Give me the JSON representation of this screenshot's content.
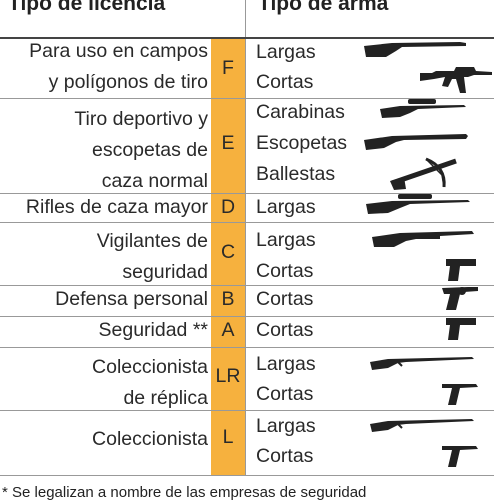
{
  "header": {
    "license_type": "Tipo de licencia",
    "weapon_type": "Tipo de arma"
  },
  "rows": [
    {
      "license": [
        "Para uso en campos",
        "y polígonos de tiro"
      ],
      "code": "F",
      "weapons": [
        {
          "label": "Largas",
          "icon": "rifle-icon"
        },
        {
          "label": "Cortas",
          "icon": "assault-rifle-icon"
        }
      ]
    },
    {
      "license": [
        "Tiro deportivo y",
        "escopetas de",
        "caza normal"
      ],
      "code": "E",
      "weapons": [
        {
          "label": "Carabinas",
          "icon": "scoped-carbine-icon"
        },
        {
          "label": "Escopetas",
          "icon": "shotgun-icon"
        },
        {
          "label": "Ballestas",
          "icon": "crossbow-icon"
        }
      ]
    },
    {
      "license": [
        "Rifles de caza mayor"
      ],
      "code": "D",
      "weapons": [
        {
          "label": "Largas",
          "icon": "scoped-rifle-icon"
        }
      ]
    },
    {
      "license": [
        "Vigilantes de",
        "seguridad"
      ],
      "code": "C",
      "weapons": [
        {
          "label": "Largas",
          "icon": "pump-shotgun-icon"
        },
        {
          "label": "Cortas",
          "icon": "pistol-icon"
        }
      ]
    },
    {
      "license": [
        "Defensa personal"
      ],
      "code": "B",
      "weapons": [
        {
          "label": "Cortas",
          "icon": "revolver-icon"
        }
      ]
    },
    {
      "license": [
        "Seguridad **"
      ],
      "code": "A",
      "weapons": [
        {
          "label": "Cortas",
          "icon": "pistol-icon"
        }
      ]
    },
    {
      "license": [
        "Coleccionista",
        "de réplica"
      ],
      "code": "LR",
      "weapons": [
        {
          "label": "Largas",
          "icon": "antique-rifle-icon"
        },
        {
          "label": "Cortas",
          "icon": "luger-pistol-icon"
        }
      ]
    },
    {
      "license": [
        "Coleccionista"
      ],
      "code": "L",
      "weapons": [
        {
          "label": "Largas",
          "icon": "antique-rifle-icon"
        },
        {
          "label": "Cortas",
          "icon": "luger-pistol-icon"
        }
      ]
    }
  ],
  "footnote": "* Se legalizan a nombre de las empresas de seguridad"
}
